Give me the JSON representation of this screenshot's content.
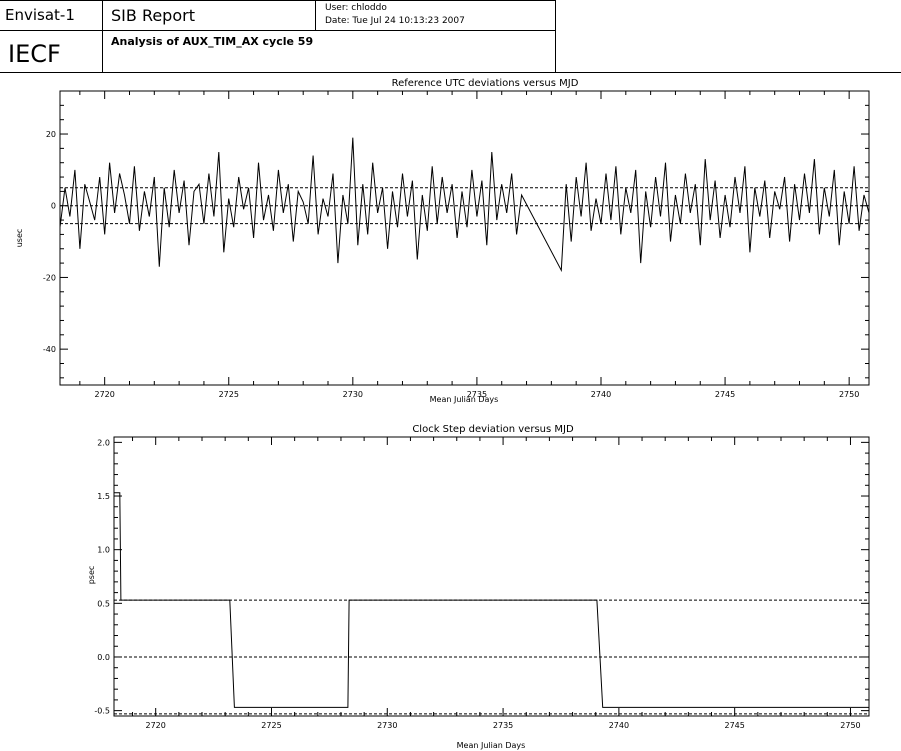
{
  "header": {
    "mission": "Envisat-1",
    "report": "SIB Report",
    "org": "IECF",
    "analysis": "Analysis of AUX_TIM_AX cycle 59",
    "user": "User: chloddo",
    "date": "Date: Tue Jul 24 10:13:23 2007"
  },
  "colors": {
    "line": "#000000",
    "background": "#ffffff"
  },
  "chart_data": [
    {
      "type": "line",
      "title": "Reference UTC deviations versus MJD",
      "xlabel": "Mean Julian Days",
      "ylabel": "usec",
      "xlim": [
        2718.2,
        2750.8
      ],
      "ylim": [
        -50,
        32
      ],
      "xticks": [
        2720,
        2725,
        2730,
        2735,
        2740,
        2745,
        2750
      ],
      "yticks": [
        -40,
        -20,
        0,
        20
      ],
      "ref_lines": [
        5,
        0,
        -5
      ],
      "series": [
        {
          "x": [
            2718.2,
            2718.4,
            2718.6,
            2718.8,
            2719.0,
            2719.2,
            2719.4,
            2719.6,
            2719.8,
            2720.0,
            2720.2,
            2720.4,
            2720.6,
            2720.8,
            2721.0,
            2721.2,
            2721.4,
            2721.6,
            2721.8,
            2722.0,
            2722.2,
            2722.4,
            2722.6,
            2722.8,
            2723.0,
            2723.2,
            2723.4,
            2723.6,
            2723.8,
            2724.0,
            2724.2,
            2724.4,
            2724.6,
            2724.8,
            2725.0,
            2725.2,
            2725.4,
            2725.6,
            2725.8,
            2726.0,
            2726.2,
            2726.4,
            2726.6,
            2726.8,
            2727.0,
            2727.2,
            2727.4,
            2727.6,
            2727.8,
            2728.0,
            2728.2,
            2728.4,
            2728.6,
            2728.8,
            2729.0,
            2729.2,
            2729.4,
            2729.6,
            2729.8,
            2730.0,
            2730.2,
            2730.4,
            2730.6,
            2730.8,
            2731.0,
            2731.2,
            2731.4,
            2731.6,
            2731.8,
            2732.0,
            2732.2,
            2732.4,
            2732.6,
            2732.8,
            2733.0,
            2733.2,
            2733.4,
            2733.6,
            2733.8,
            2734.0,
            2734.2,
            2734.4,
            2734.6,
            2734.8,
            2735.0,
            2735.2,
            2735.4,
            2735.6,
            2735.8,
            2736.0,
            2736.2,
            2736.4,
            2736.6,
            2736.8,
            2738.4,
            2738.6,
            2738.8,
            2739.0,
            2739.2,
            2739.4,
            2739.6,
            2739.8,
            2740.0,
            2740.2,
            2740.4,
            2740.6,
            2740.8,
            2741.0,
            2741.2,
            2741.4,
            2741.6,
            2741.8,
            2742.0,
            2742.2,
            2742.4,
            2742.6,
            2742.8,
            2743.0,
            2743.2,
            2743.4,
            2743.6,
            2743.8,
            2744.0,
            2744.2,
            2744.4,
            2744.6,
            2744.8,
            2745.0,
            2745.2,
            2745.4,
            2745.6,
            2745.8,
            2746.0,
            2746.2,
            2746.4,
            2746.6,
            2746.8,
            2747.0,
            2747.2,
            2747.4,
            2747.6,
            2747.8,
            2748.0,
            2748.2,
            2748.4,
            2748.6,
            2748.8,
            2749.0,
            2749.2,
            2749.4,
            2749.6,
            2749.8,
            2750.0,
            2750.2,
            2750.4,
            2750.6,
            2750.8
          ],
          "y": [
            -6,
            5,
            -3,
            10,
            -12,
            6,
            1,
            -4,
            8,
            -8,
            12,
            -2,
            9,
            3,
            -5,
            11,
            -7,
            4,
            -3,
            8,
            -17,
            5,
            -6,
            10,
            -2,
            7,
            -11,
            4,
            6,
            -5,
            9,
            -3,
            15,
            -13,
            2,
            -6,
            8,
            -1,
            5,
            -9,
            12,
            -4,
            3,
            -7,
            10,
            -2,
            6,
            -10,
            4,
            1,
            -5,
            14,
            -8,
            2,
            -3,
            9,
            -16,
            3,
            -5,
            19,
            -11,
            6,
            -8,
            12,
            -2,
            5,
            -12,
            4,
            -6,
            9,
            -3,
            7,
            -15,
            3,
            -7,
            11,
            -5,
            8,
            -2,
            6,
            -9,
            4,
            -6,
            10,
            -3,
            7,
            -11,
            15,
            -4,
            6,
            -2,
            9,
            -8,
            3,
            -18,
            6,
            -10,
            8,
            -3,
            12,
            -7,
            2,
            -5,
            9,
            -4,
            11,
            -8,
            5,
            -2,
            10,
            -16,
            4,
            -6,
            8,
            -3,
            12,
            -10,
            3,
            -5,
            9,
            -2,
            6,
            -11,
            13,
            -4,
            7,
            -9,
            3,
            -6,
            8,
            -2,
            11,
            -13,
            5,
            -3,
            7,
            -9,
            4,
            -1,
            8,
            -10,
            6,
            -4,
            9,
            -2,
            13,
            -8,
            5,
            -3,
            10,
            -11,
            4,
            -5,
            11,
            -7,
            3,
            -2
          ]
        }
      ]
    },
    {
      "type": "line",
      "title": "Clock Step deviation versus MJD",
      "xlabel": "Mean Julian Days",
      "ylabel": "psec",
      "xlim": [
        2718.2,
        2750.8
      ],
      "ylim": [
        -0.55,
        2.05
      ],
      "xticks": [
        2720,
        2725,
        2730,
        2735,
        2740,
        2745,
        2750
      ],
      "yticks": [
        -0.5,
        0.0,
        0.5,
        1.0,
        1.5,
        2.0
      ],
      "ytick_labels": [
        "-0.5",
        "0.0",
        "0.5",
        "1.0",
        "1.5",
        "2.0"
      ],
      "ref_lines": [
        0.53,
        0.0,
        -0.53
      ],
      "series": [
        {
          "x": [
            2718.2,
            2718.45,
            2718.5,
            2723.2,
            2723.4,
            2728.3,
            2728.35,
            2739.05,
            2739.3,
            2750.8
          ],
          "y": [
            1.53,
            1.53,
            0.53,
            0.53,
            -0.47,
            -0.47,
            0.53,
            0.53,
            -0.47,
            -0.47
          ]
        }
      ]
    }
  ]
}
